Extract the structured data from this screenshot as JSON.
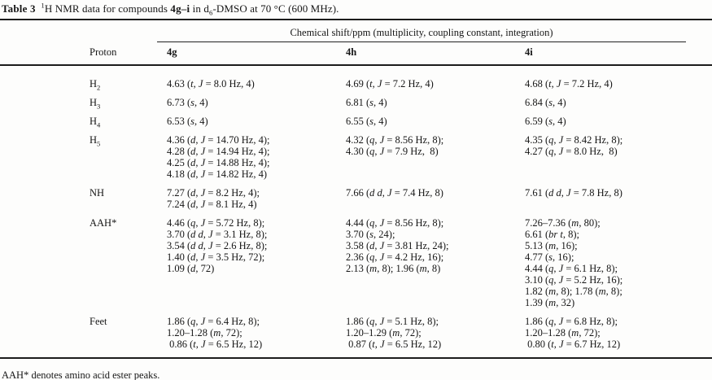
{
  "caption": "**Table 3** ^1^H NMR data for compounds **4g–i** in d~6~-DMSO at 70 °C (600 MHz).",
  "table": {
    "span_header": "Chemical shift/ppm (multiplicity, coupling constant, integration)",
    "columns": [
      "Proton",
      "4g",
      "4h",
      "4i"
    ],
    "rows": [
      {
        "proton": "H~2~",
        "cells": [
          [
            "4.63 (*t*, *J* = 8.0 Hz, 4)"
          ],
          [
            "4.69 (*t*, *J* = 7.2 Hz, 4)"
          ],
          [
            "4.68 (*t*, *J* = 7.2 Hz, 4)"
          ]
        ]
      },
      {
        "proton": "H~3~",
        "cells": [
          [
            "6.73 (*s*, 4)"
          ],
          [
            "6.81 (*s*, 4)"
          ],
          [
            "6.84 (*s*, 4)"
          ]
        ]
      },
      {
        "proton": "H~4~",
        "cells": [
          [
            "6.53 (*s*, 4)"
          ],
          [
            "6.55 (*s*, 4)"
          ],
          [
            "6.59 (*s*, 4)"
          ]
        ]
      },
      {
        "proton": "H~5~",
        "cells": [
          [
            "4.36 (*d*, *J* = 14.70 Hz, 4);",
            "4.28 (*d*, *J* = 14.94 Hz, 4);",
            "4.25 (*d*, *J* = 14.88 Hz, 4);",
            "4.18 (*d*, *J* = 14.82 Hz, 4)"
          ],
          [
            "4.32 (*q*, *J* = 8.56 Hz, 8);",
            "4.30 (*q*, *J* = 7.9 Hz,  8)"
          ],
          [
            "4.35 (*q*, *J* = 8.42 Hz, 8);",
            "4.27 (*q*, *J* = 8.0 Hz,  8)"
          ]
        ]
      },
      {
        "proton": "NH",
        "cells": [
          [
            "7.27 (*d*, *J* = 8.2 Hz, 4);",
            "7.24 (*d*, *J* = 8.1 Hz, 4)"
          ],
          [
            "7.66 (*d d*, *J* = 7.4 Hz, 8)"
          ],
          [
            "7.61 (*d d*, *J* = 7.8 Hz, 8)"
          ]
        ]
      },
      {
        "proton": "AAH*",
        "cells": [
          [
            "4.46 (*q*, *J* = 5.72 Hz, 8);",
            "3.70 (*d d*, *J* = 3.1 Hz, 8);",
            "3.54 (*d d*, *J* = 2.6 Hz, 8);",
            "1.40 (*d*, *J* = 3.5 Hz, 72);",
            "1.09 (*d*, 72)"
          ],
          [
            "4.44 (*q*, *J* = 8.56 Hz, 8);",
            "3.70 (*s*, 24);",
            "3.58 (*d*, *J* = 3.81 Hz, 24);",
            "2.36 (*q*, *J* = 4.2 Hz, 16);",
            "2.13 (*m*, 8); 1.96 (*m*, 8)"
          ],
          [
            "7.26–7.36 (*m*, 80);",
            "6.61 (*br t*, 8);",
            "5.13 (*m*, 16);",
            "4.77 (*s*, 16);",
            "4.44 (*q*, *J* = 6.1 Hz, 8);",
            "3.10 (*q*, *J* = 5.2 Hz, 16);",
            "1.82 (*m*, 8); 1.78 (*m*, 8);",
            "1.39 (*m*, 32)"
          ]
        ]
      },
      {
        "proton": "Feet",
        "cells": [
          [
            "1.86 (*q*, *J* = 6.4 Hz, 8);",
            "1.20–1.28 (*m*, 72);",
            " 0.86 (*t*, *J* = 6.5 Hz, 12)"
          ],
          [
            "1.86 (*q*, *J* = 5.1 Hz, 8);",
            "1.20–1.29 (*m*, 72);",
            " 0.87 (*t*, *J* = 6.5 Hz, 12)"
          ],
          [
            "1.86 (*q*, *J* = 6.8 Hz, 8);",
            "1.20–1.28 (*m*, 72);",
            " 0.80 (*t*, *J* = 6.7 Hz, 12)"
          ]
        ]
      }
    ]
  },
  "footnote": "AAH* denotes amino acid ester peaks."
}
